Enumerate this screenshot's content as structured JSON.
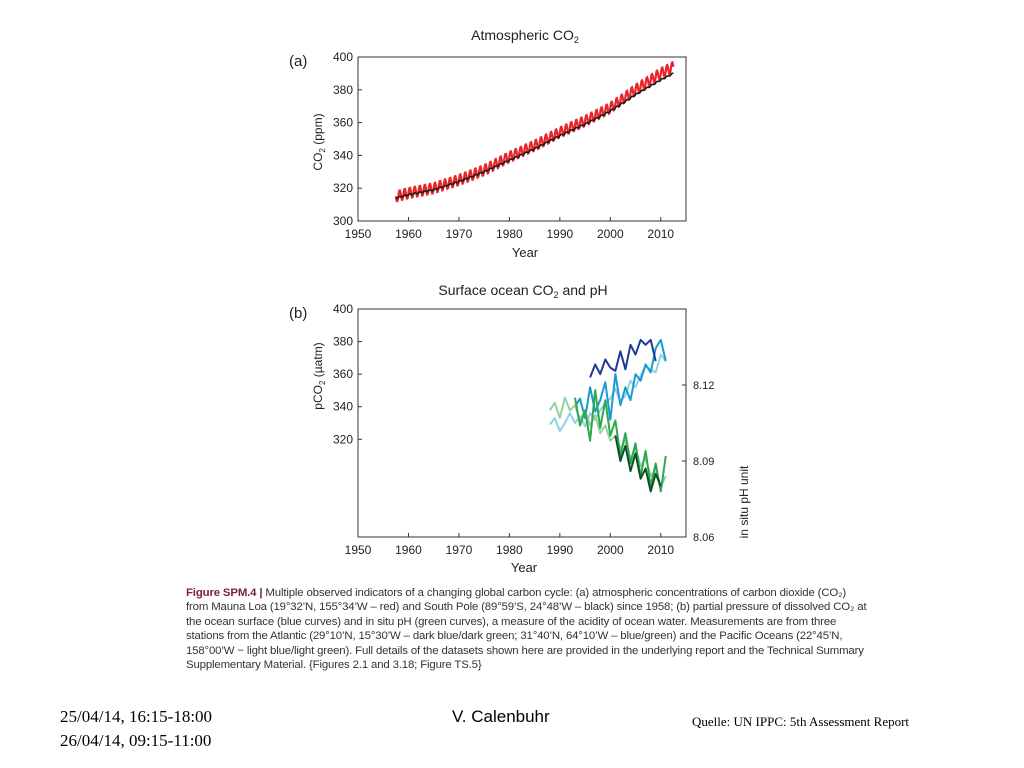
{
  "chart_data": [
    {
      "type": "line",
      "panel_label": "(a)",
      "title": "Atmospheric CO",
      "title_sub": "2",
      "xlabel": "Year",
      "ylabel": "CO",
      "ylabel_sub": "2",
      "ylabel_unit": " (ppm)",
      "xlim": [
        1950,
        2015
      ],
      "ylim": [
        300,
        400
      ],
      "xticks": [
        1950,
        1960,
        1970,
        1980,
        1990,
        2000,
        2010
      ],
      "yticks": [
        300,
        320,
        340,
        360,
        380,
        400
      ],
      "series": [
        {
          "color": "#e8262b",
          "seasonal_amplitude": 3.2,
          "x": [
            1957.5,
            1960,
            1965,
            1970,
            1975,
            1980,
            1985,
            1990,
            1995,
            2000,
            2005,
            2010,
            2012.5
          ],
          "y": [
            315,
            317,
            320,
            325,
            331,
            339,
            346,
            354,
            361,
            369,
            380,
            390,
            394
          ]
        },
        {
          "color": "#1a1a1a",
          "seasonal_amplitude": 0.4,
          "x": [
            1957.5,
            1960,
            1965,
            1970,
            1975,
            1980,
            1985,
            1990,
            1995,
            2000,
            2005,
            2010,
            2012.5
          ],
          "y": [
            314,
            316,
            319,
            324,
            330,
            337,
            344,
            352,
            359,
            367,
            377,
            386,
            390
          ]
        }
      ]
    },
    {
      "type": "line",
      "panel_label": "(b)",
      "title": "Surface ocean CO",
      "title_sub": "2",
      "title_rest": " and pH",
      "xlabel": "Year",
      "ylabel": "pCO",
      "ylabel_sub": "2",
      "ylabel_unit": " (µatm)",
      "ylabel_right": "in situ pH unit",
      "xlim": [
        1950,
        2015
      ],
      "ylim_left": [
        260,
        400
      ],
      "ylim_right": [
        8.06,
        8.15
      ],
      "xticks": [
        1950,
        1960,
        1970,
        1980,
        1990,
        2000,
        2010
      ],
      "yticks_left": [
        320,
        340,
        360,
        380,
        400
      ],
      "yticks_right": [
        "8.06",
        "8.09",
        "8.12"
      ],
      "pco2_series": [
        {
          "color": "#1f3a93",
          "x": [
            1996,
            1997,
            1998,
            1999,
            2000,
            2001,
            2002,
            2003,
            2004,
            2005,
            2006,
            2007,
            2008,
            2009
          ],
          "y": [
            358,
            366,
            360,
            369,
            364,
            362,
            374,
            363,
            378,
            372,
            381,
            378,
            381,
            368
          ]
        },
        {
          "color": "#1a9bd0",
          "x": [
            1993,
            1994,
            1995,
            1996,
            1997,
            1998,
            1999,
            2000,
            2001,
            2002,
            2003,
            2004,
            2005,
            2006,
            2007,
            2008,
            2009,
            2010,
            2011
          ],
          "y": [
            340,
            345,
            333,
            352,
            337,
            344,
            355,
            332,
            360,
            341,
            352,
            344,
            360,
            356,
            366,
            361,
            376,
            381,
            368
          ]
        },
        {
          "color": "#8dd3e5",
          "x": [
            1988,
            1989,
            1990,
            1991,
            1992,
            1993,
            1994,
            1995,
            1996,
            1997,
            1998,
            1999,
            2000,
            2001,
            2002,
            2003,
            2004,
            2005,
            2006,
            2007,
            2008,
            2009,
            2010,
            2011
          ],
          "y": [
            329,
            333,
            325,
            330,
            336,
            330,
            334,
            328,
            336,
            332,
            338,
            342,
            345,
            351,
            343,
            347,
            356,
            352,
            359,
            365,
            363,
            361,
            372,
            368
          ]
        }
      ],
      "ph_series": [
        {
          "color": "#0f4d26",
          "x": [
            2001,
            2002,
            2003,
            2004,
            2005,
            2006,
            2007,
            2008,
            2009,
            2010
          ],
          "y": [
            8.1,
            8.09,
            8.096,
            8.086,
            8.093,
            8.083,
            8.087,
            8.078,
            8.085,
            8.08
          ]
        },
        {
          "color": "#2ea84f",
          "x": [
            1993,
            1994,
            1995,
            1996,
            1997,
            1998,
            1999,
            2000,
            2001,
            2002,
            2003,
            2004,
            2005,
            2006,
            2007,
            2008,
            2009,
            2010,
            2011
          ],
          "y": [
            8.115,
            8.104,
            8.11,
            8.098,
            8.118,
            8.103,
            8.114,
            8.1,
            8.106,
            8.092,
            8.101,
            8.089,
            8.097,
            8.084,
            8.094,
            8.08,
            8.089,
            8.078,
            8.092
          ]
        },
        {
          "color": "#96d1a0",
          "x": [
            1988,
            1989,
            1990,
            1991,
            1992,
            1993,
            1994,
            1995,
            1996,
            1997,
            1998,
            1999,
            2000,
            2001,
            2002,
            2003,
            2004,
            2005,
            2006,
            2007,
            2008,
            2009,
            2010,
            2011
          ],
          "y": [
            8.11,
            8.113,
            8.107,
            8.115,
            8.11,
            8.112,
            8.106,
            8.11,
            8.104,
            8.108,
            8.101,
            8.104,
            8.098,
            8.1,
            8.095,
            8.098,
            8.091,
            8.095,
            8.088,
            8.091,
            8.084,
            8.087,
            8.08,
            8.084
          ]
        }
      ]
    }
  ],
  "caption": {
    "label": "Figure SPM.4 |",
    "text": " Multiple observed indicators of a changing global carbon cycle: (a) atmospheric concentrations of carbon dioxide (CO₂) from Mauna Loa (19°32’N, 155°34’W – red) and South Pole (89°59’S, 24°48’W – black) since 1958; (b) partial pressure of dissolved CO₂ at the ocean surface (blue curves) and in situ pH (green curves), a measure of the acidity of ocean water. Measurements are from three stations from the Atlantic (29°10’N, 15°30’W – dark blue/dark green; 31°40’N, 64°10’W – blue/green) and the Pacific Oceans (22°45’N, 158°00’W − light blue/light green). Full details of the datasets shown here are provided in the underlying report and the Technical Summary Supplementary Material. {Figures 2.1 and 3.18; Figure TS.5}"
  },
  "footer": {
    "date_line1": "25/04/14, 16:15-18:00",
    "date_line2": "26/04/14, 09:15-11:00",
    "author": "V. Calenbuhr",
    "source": "Quelle: UN IPPC: 5th Assessment Report"
  }
}
